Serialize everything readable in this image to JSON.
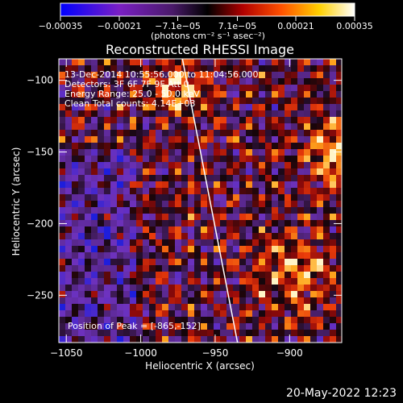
{
  "chart_data": {
    "type": "heatmap",
    "title": "Reconstructed RHESSI Image",
    "xlabel": "Heliocentric X (arcsec)",
    "ylabel": "Heliocentric Y (arcsec)",
    "xlim": [
      -1055,
      -865
    ],
    "ylim": [
      -283,
      -85
    ],
    "xticks": [
      -1050,
      -1000,
      -950,
      -900
    ],
    "xtick_labels": [
      "−1050",
      "−1000",
      "−950",
      "−900"
    ],
    "yticks": [
      -100,
      -150,
      -200,
      -250
    ],
    "ytick_labels": [
      "−100",
      "−150",
      "−200",
      "−250"
    ],
    "colorbar": {
      "min": -0.00035,
      "max": 0.00035,
      "ticks": [
        -0.00035,
        -0.00021,
        -7.1e-05,
        7.1e-05,
        0.00021,
        0.00035
      ],
      "tick_labels": [
        "−0.00035",
        "−0.00021",
        "−7.1e−05",
        "7.1e−05",
        "0.00021",
        "0.00035"
      ],
      "unit_label": "(photons cm⁻² s⁻¹ asec⁻²)",
      "colors": [
        "#0000ff",
        "#7a1fc4",
        "#4a1a6a",
        "#000000",
        "#b00000",
        "#ff5000",
        "#ffd000",
        "#ffffff"
      ]
    },
    "info_lines": [
      "13-Dec-2014 10:55:56.000 to 11:04:56.000",
      "Detectors: 3F 6F 7F 9F  Att 0",
      "Energy Range: 25.0 - 50.0 keV",
      "Clean     Total counts: 4.14E+03"
    ],
    "peak_label": "Position of Peak = [-865,-152]",
    "peak": [
      -865,
      -152
    ],
    "limb_line": [
      [
        -972,
        -85
      ],
      [
        -935,
        -283
      ]
    ],
    "grid": false
  },
  "footer": {
    "date_stamp": "20-May-2022 12:23"
  }
}
